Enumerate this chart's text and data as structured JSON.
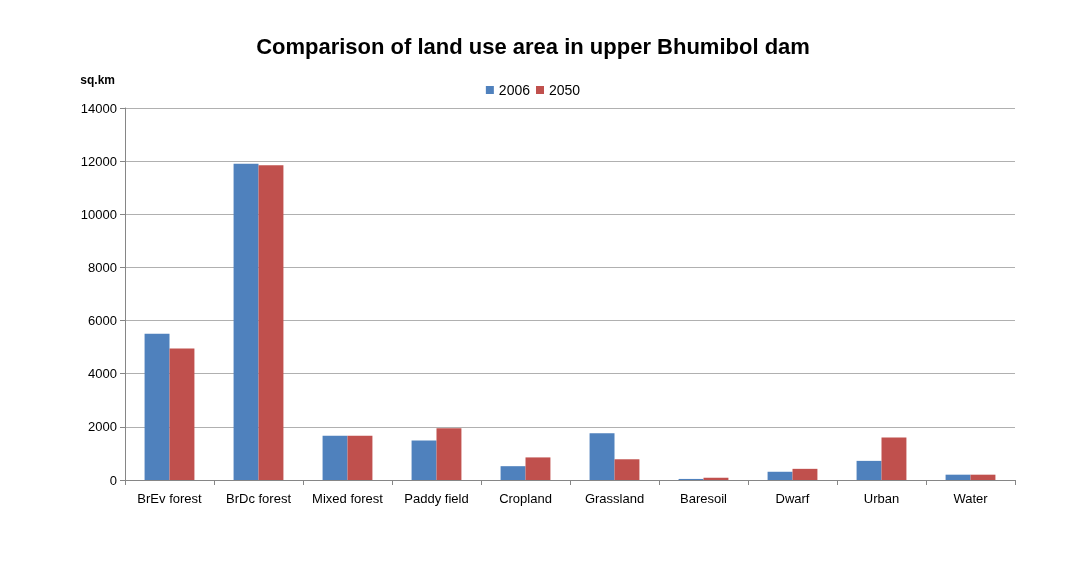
{
  "chart_data": {
    "type": "bar",
    "title": "Comparison of land use area in upper Bhumibol dam",
    "ylabel": "sq.km",
    "categories": [
      "BrEv forest",
      "BrDc forest",
      "Mixed forest",
      "Paddy field",
      "Cropland",
      "Grassland",
      "Baresoil",
      "Dwarf",
      "Urban",
      "Water"
    ],
    "series": [
      {
        "name": "2006",
        "color": "#4f81bd",
        "values": [
          5500,
          11900,
          1670,
          1490,
          520,
          1760,
          40,
          310,
          720,
          200
        ]
      },
      {
        "name": "2050",
        "color": "#c0504d",
        "values": [
          4950,
          11850,
          1670,
          1950,
          850,
          780,
          85,
          420,
          1600,
          200
        ]
      }
    ],
    "ylim": [
      0,
      14000
    ],
    "yticks": [
      0,
      2000,
      4000,
      6000,
      8000,
      10000,
      12000,
      14000
    ],
    "grid": "y",
    "legend": "top"
  }
}
